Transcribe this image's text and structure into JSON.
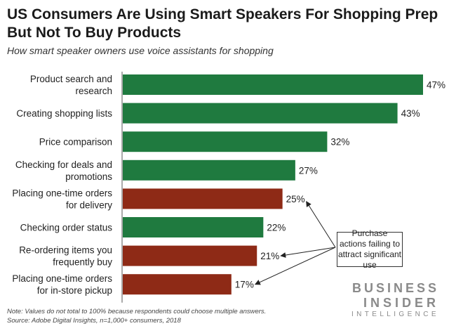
{
  "header": {
    "title": "US Consumers Are Using Smart Speakers For Shopping Prep But Not To Buy Products",
    "subtitle": "How smart speaker owners use voice assistants for shopping"
  },
  "chart_data": {
    "type": "bar",
    "orientation": "horizontal",
    "title": "US Consumers Are Using Smart Speakers For Shopping Prep But Not To Buy Products",
    "subtitle": "How smart speaker owners use voice assistants for shopping",
    "categories": [
      [
        "Product search and",
        "research"
      ],
      [
        "Creating shopping lists"
      ],
      [
        "Price comparison"
      ],
      [
        "Checking for deals and",
        "promotions"
      ],
      [
        "Placing one-time orders",
        "for delivery"
      ],
      [
        "Checking order status"
      ],
      [
        "Re-ordering items you",
        "frequently buy"
      ],
      [
        "Placing one-time orders",
        "for in-store pickup"
      ]
    ],
    "values": [
      47,
      43,
      32,
      27,
      25,
      22,
      21,
      17
    ],
    "value_labels": [
      "47%",
      "43%",
      "32%",
      "27%",
      "25%",
      "22%",
      "21%",
      "17%"
    ],
    "purchase_action": [
      false,
      false,
      false,
      false,
      true,
      false,
      true,
      true
    ],
    "colors": {
      "default": "#1f7a3f",
      "purchase": "#8e2a16"
    },
    "xlim": [
      0,
      47
    ],
    "annotation": "Purchase actions failing to attract significant use"
  },
  "logo": {
    "line1": "BUSINESS",
    "line2": "INSIDER",
    "line3": "INTELLIGENCE"
  },
  "footer": {
    "note": "Note: Values do not total to 100% because respondents could choose multiple answers.",
    "source": "Source: Adobe Digital Insights, n=1,000+ consumers, 2018"
  }
}
